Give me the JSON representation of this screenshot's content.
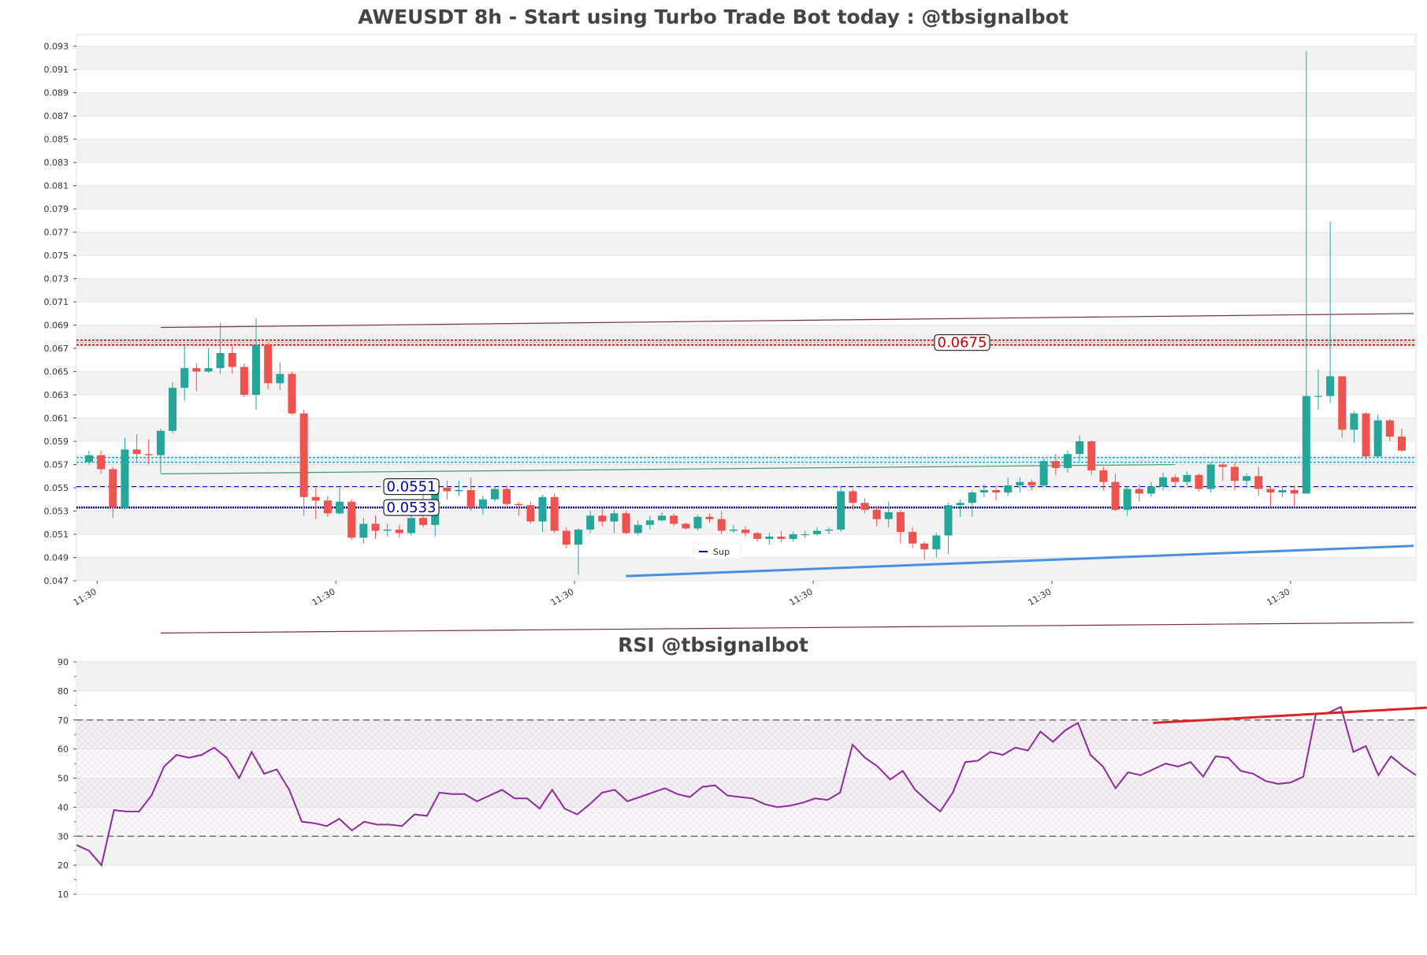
{
  "chart_data": [
    {
      "type": "candlestick",
      "title": "AWEUSDT 8h - Start using Turbo Trade Bot today : @tbsignalbot",
      "ylim": [
        0.047,
        0.094
      ],
      "y_ticks": [
        "0.047",
        "0.049",
        "0.051",
        "0.053",
        "0.055",
        "0.057",
        "0.059",
        "0.061",
        "0.063",
        "0.065",
        "0.067",
        "0.069",
        "0.071",
        "0.073",
        "0.075",
        "0.077",
        "0.079",
        "0.081",
        "0.083",
        "0.085",
        "0.087",
        "0.089",
        "0.091",
        "0.093"
      ],
      "x_ticks": [
        "11:30",
        "11:30",
        "11:30",
        "11:30",
        "11:30",
        "11:30"
      ],
      "legend": {
        "label": "Sup",
        "placement": "bottom-center"
      },
      "grid": "horizontal bands",
      "levels": [
        {
          "label": "0.0675",
          "value": 0.0675,
          "color": "#cc0000",
          "style": "dotted band"
        },
        {
          "label": "0.0551",
          "value": 0.0551,
          "color": "#0000aa",
          "style": "dashed"
        },
        {
          "label": "0.0533",
          "value": 0.0533,
          "color": "#0000aa",
          "style": "dotted"
        },
        {
          "label": "",
          "value": 0.0574,
          "color": "#1fa3d6",
          "style": "dotted band"
        }
      ],
      "trendlines": [
        {
          "color": "#7a2f3f",
          "from": [
            6,
            0.0688
          ],
          "to": [
            111,
            0.07
          ]
        },
        {
          "color": "#3d9970",
          "from": [
            6,
            0.0562
          ],
          "to": [
            91,
            0.057
          ]
        },
        {
          "color": "#4a90e2",
          "from": [
            45,
            0.0474
          ],
          "to": [
            111,
            0.05
          ]
        },
        {
          "color": "#7a2f3f",
          "from": [
            6,
            0.0425
          ],
          "to": [
            111,
            0.0434
          ]
        }
      ],
      "candles": [
        [
          0.0572,
          0.0578,
          0.057,
          0.0582
        ],
        [
          0.0578,
          0.0566,
          0.0562,
          0.0582
        ],
        [
          0.0566,
          0.0533,
          0.0524,
          0.0568
        ],
        [
          0.0533,
          0.0583,
          0.0531,
          0.0593
        ],
        [
          0.0583,
          0.0579,
          0.0572,
          0.0596
        ],
        [
          0.0579,
          0.0578,
          0.057,
          0.0592
        ],
        [
          0.0578,
          0.0599,
          0.0563,
          0.0601
        ],
        [
          0.0599,
          0.0636,
          0.0597,
          0.0641
        ],
        [
          0.0636,
          0.0653,
          0.0625,
          0.0672
        ],
        [
          0.0653,
          0.065,
          0.0633,
          0.0657
        ],
        [
          0.065,
          0.0653,
          0.0649,
          0.067
        ],
        [
          0.0653,
          0.0666,
          0.0648,
          0.0692
        ],
        [
          0.0666,
          0.0654,
          0.0648,
          0.0672
        ],
        [
          0.0654,
          0.063,
          0.0628,
          0.0657
        ],
        [
          0.063,
          0.0673,
          0.0617,
          0.0696
        ],
        [
          0.0673,
          0.064,
          0.0635,
          0.0675
        ],
        [
          0.064,
          0.0648,
          0.0634,
          0.0658
        ],
        [
          0.0648,
          0.0614,
          0.0613,
          0.065
        ],
        [
          0.0614,
          0.0542,
          0.0526,
          0.0617
        ],
        [
          0.0542,
          0.0539,
          0.0523,
          0.055
        ],
        [
          0.0539,
          0.0528,
          0.0525,
          0.0543
        ],
        [
          0.0528,
          0.0538,
          0.0527,
          0.055
        ],
        [
          0.0538,
          0.0507,
          0.0505,
          0.054
        ],
        [
          0.0507,
          0.0519,
          0.0502,
          0.0524
        ],
        [
          0.0519,
          0.0513,
          0.0506,
          0.0526
        ],
        [
          0.0513,
          0.0514,
          0.0508,
          0.0519
        ],
        [
          0.0514,
          0.0511,
          0.0507,
          0.0518
        ],
        [
          0.0511,
          0.0524,
          0.0509,
          0.0527
        ],
        [
          0.0524,
          0.0518,
          0.0516,
          0.0551
        ],
        [
          0.0518,
          0.055,
          0.0508,
          0.0553
        ],
        [
          0.055,
          0.0547,
          0.054,
          0.0556
        ],
        [
          0.0547,
          0.0548,
          0.0543,
          0.0556
        ],
        [
          0.0548,
          0.0533,
          0.053,
          0.0559
        ],
        [
          0.0533,
          0.054,
          0.0527,
          0.0543
        ],
        [
          0.054,
          0.0549,
          0.0538,
          0.0551
        ],
        [
          0.0549,
          0.0536,
          0.0534,
          0.0552
        ],
        [
          0.0536,
          0.0535,
          0.0526,
          0.0538
        ],
        [
          0.0535,
          0.0521,
          0.0519,
          0.0538
        ],
        [
          0.0521,
          0.0542,
          0.0512,
          0.0544
        ],
        [
          0.0542,
          0.0513,
          0.0511,
          0.0545
        ],
        [
          0.0513,
          0.0501,
          0.0498,
          0.0516
        ],
        [
          0.0501,
          0.0514,
          0.0475,
          0.0515
        ],
        [
          0.0514,
          0.0526,
          0.0511,
          0.053
        ],
        [
          0.0526,
          0.0521,
          0.0517,
          0.0532
        ],
        [
          0.0521,
          0.0528,
          0.0511,
          0.0531
        ],
        [
          0.0528,
          0.0511,
          0.051,
          0.053
        ],
        [
          0.0511,
          0.0518,
          0.0509,
          0.0522
        ],
        [
          0.0518,
          0.0522,
          0.0514,
          0.0526
        ],
        [
          0.0522,
          0.0526,
          0.0521,
          0.0529
        ],
        [
          0.0526,
          0.0519,
          0.0517,
          0.0528
        ],
        [
          0.0519,
          0.0515,
          0.0514,
          0.052
        ],
        [
          0.0515,
          0.0525,
          0.0513,
          0.0527
        ],
        [
          0.0525,
          0.0523,
          0.052,
          0.0528
        ],
        [
          0.0523,
          0.0513,
          0.051,
          0.053
        ],
        [
          0.0513,
          0.0514,
          0.0511,
          0.0518
        ],
        [
          0.0514,
          0.0511,
          0.0508,
          0.0517
        ],
        [
          0.0511,
          0.0506,
          0.0504,
          0.0512
        ],
        [
          0.0506,
          0.0508,
          0.0501,
          0.0511
        ],
        [
          0.0508,
          0.0506,
          0.0503,
          0.0513
        ],
        [
          0.0506,
          0.051,
          0.0504,
          0.0512
        ],
        [
          0.051,
          0.051,
          0.0507,
          0.0513
        ],
        [
          0.051,
          0.0513,
          0.0509,
          0.0516
        ],
        [
          0.0513,
          0.0514,
          0.051,
          0.0516
        ],
        [
          0.0514,
          0.0547,
          0.0512,
          0.0551
        ],
        [
          0.0547,
          0.0537,
          0.0531,
          0.0549
        ],
        [
          0.0537,
          0.0531,
          0.0528,
          0.0541
        ],
        [
          0.0531,
          0.0523,
          0.0517,
          0.0534
        ],
        [
          0.0523,
          0.0529,
          0.0516,
          0.0538
        ],
        [
          0.0529,
          0.0512,
          0.0502,
          0.0531
        ],
        [
          0.0512,
          0.0502,
          0.0498,
          0.0516
        ],
        [
          0.0502,
          0.0497,
          0.0488,
          0.0504
        ],
        [
          0.0497,
          0.0509,
          0.049,
          0.0511
        ],
        [
          0.0509,
          0.0535,
          0.0493,
          0.0537
        ],
        [
          0.0535,
          0.0537,
          0.0525,
          0.054
        ],
        [
          0.0537,
          0.0546,
          0.0525,
          0.0548
        ],
        [
          0.0546,
          0.0548,
          0.0542,
          0.0553
        ],
        [
          0.0548,
          0.0546,
          0.0539,
          0.0552
        ],
        [
          0.0546,
          0.0552,
          0.0543,
          0.0559
        ],
        [
          0.0552,
          0.0555,
          0.0546,
          0.0559
        ],
        [
          0.0555,
          0.0552,
          0.0548,
          0.0557
        ],
        [
          0.0552,
          0.0573,
          0.0551,
          0.0575
        ],
        [
          0.0573,
          0.0567,
          0.0561,
          0.0579
        ],
        [
          0.0567,
          0.0579,
          0.0563,
          0.0582
        ],
        [
          0.0579,
          0.059,
          0.0572,
          0.0595
        ],
        [
          0.059,
          0.0565,
          0.0561,
          0.0591
        ],
        [
          0.0565,
          0.0555,
          0.0548,
          0.0568
        ],
        [
          0.0555,
          0.0531,
          0.053,
          0.0562
        ],
        [
          0.0531,
          0.0549,
          0.0526,
          0.0551
        ],
        [
          0.0549,
          0.0545,
          0.0538,
          0.0553
        ],
        [
          0.0545,
          0.0551,
          0.0542,
          0.0555
        ],
        [
          0.0551,
          0.0559,
          0.0548,
          0.0563
        ],
        [
          0.0559,
          0.0555,
          0.0551,
          0.0561
        ],
        [
          0.0555,
          0.0561,
          0.0552,
          0.0564
        ],
        [
          0.0561,
          0.0549,
          0.0547,
          0.0562
        ],
        [
          0.0549,
          0.057,
          0.0546,
          0.0572
        ],
        [
          0.057,
          0.0568,
          0.0556,
          0.0572
        ],
        [
          0.0568,
          0.0556,
          0.0548,
          0.0572
        ],
        [
          0.0556,
          0.056,
          0.0552,
          0.0562
        ],
        [
          0.056,
          0.0549,
          0.0543,
          0.0568
        ],
        [
          0.0549,
          0.0546,
          0.0534,
          0.0551
        ],
        [
          0.0546,
          0.0548,
          0.0542,
          0.0551
        ],
        [
          0.0548,
          0.0545,
          0.0533,
          0.0552
        ],
        [
          0.0545,
          0.0629,
          0.0545,
          0.0926
        ],
        [
          0.0629,
          0.0629,
          0.0617,
          0.0652
        ],
        [
          0.0629,
          0.0646,
          0.0623,
          0.0779
        ],
        [
          0.0646,
          0.06,
          0.0593,
          0.0646
        ],
        [
          0.06,
          0.0614,
          0.0589,
          0.0616
        ],
        [
          0.0614,
          0.0577,
          0.0574,
          0.0615
        ],
        [
          0.0577,
          0.0608,
          0.0576,
          0.0613
        ],
        [
          0.0608,
          0.0594,
          0.059,
          0.0609
        ],
        [
          0.0594,
          0.0582,
          0.0581,
          0.0601
        ]
      ]
    },
    {
      "type": "line",
      "title": "RSI @tbsignalbot",
      "ylim": [
        10,
        90
      ],
      "y_ticks": [
        "10",
        "20",
        "30",
        "40",
        "50",
        "60",
        "70",
        "80",
        "90"
      ],
      "reference_lines": [
        30,
        70
      ],
      "trendlines": [
        {
          "color": "#dd2222",
          "from": [
            86,
            69
          ],
          "to": [
            114,
            76
          ]
        }
      ],
      "series": [
        {
          "values": [
            27,
            25,
            20,
            39,
            38.5,
            38.5,
            44,
            54,
            58,
            57,
            58,
            60.5,
            57,
            50,
            59,
            51.5,
            53,
            46,
            35,
            34.5,
            33.5,
            36,
            32,
            35,
            34,
            34,
            33.5,
            37.5,
            37,
            45,
            44.5,
            44.5,
            42,
            44,
            46,
            43,
            43,
            39.5,
            46,
            39.5,
            37.5,
            41,
            45,
            46,
            42,
            43.5,
            45,
            46.5,
            44.5,
            43.5,
            47,
            47.5,
            44,
            43.5,
            43,
            41,
            40,
            40.5,
            41.5,
            43,
            42.5,
            45,
            61.5,
            57,
            54,
            49.5,
            52.5,
            46,
            42,
            38.5,
            45,
            55.5,
            56,
            59,
            58,
            60.5,
            59.5,
            66,
            62.5,
            66.5,
            69,
            58,
            54,
            46.5,
            52,
            51,
            53,
            55,
            54,
            55.5,
            50.5,
            57.5,
            57,
            52.5,
            51.5,
            49,
            48,
            48.5,
            50.5,
            72,
            72.5,
            74.5,
            59,
            61,
            51,
            57.5,
            54,
            51
          ]
        }
      ]
    }
  ]
}
